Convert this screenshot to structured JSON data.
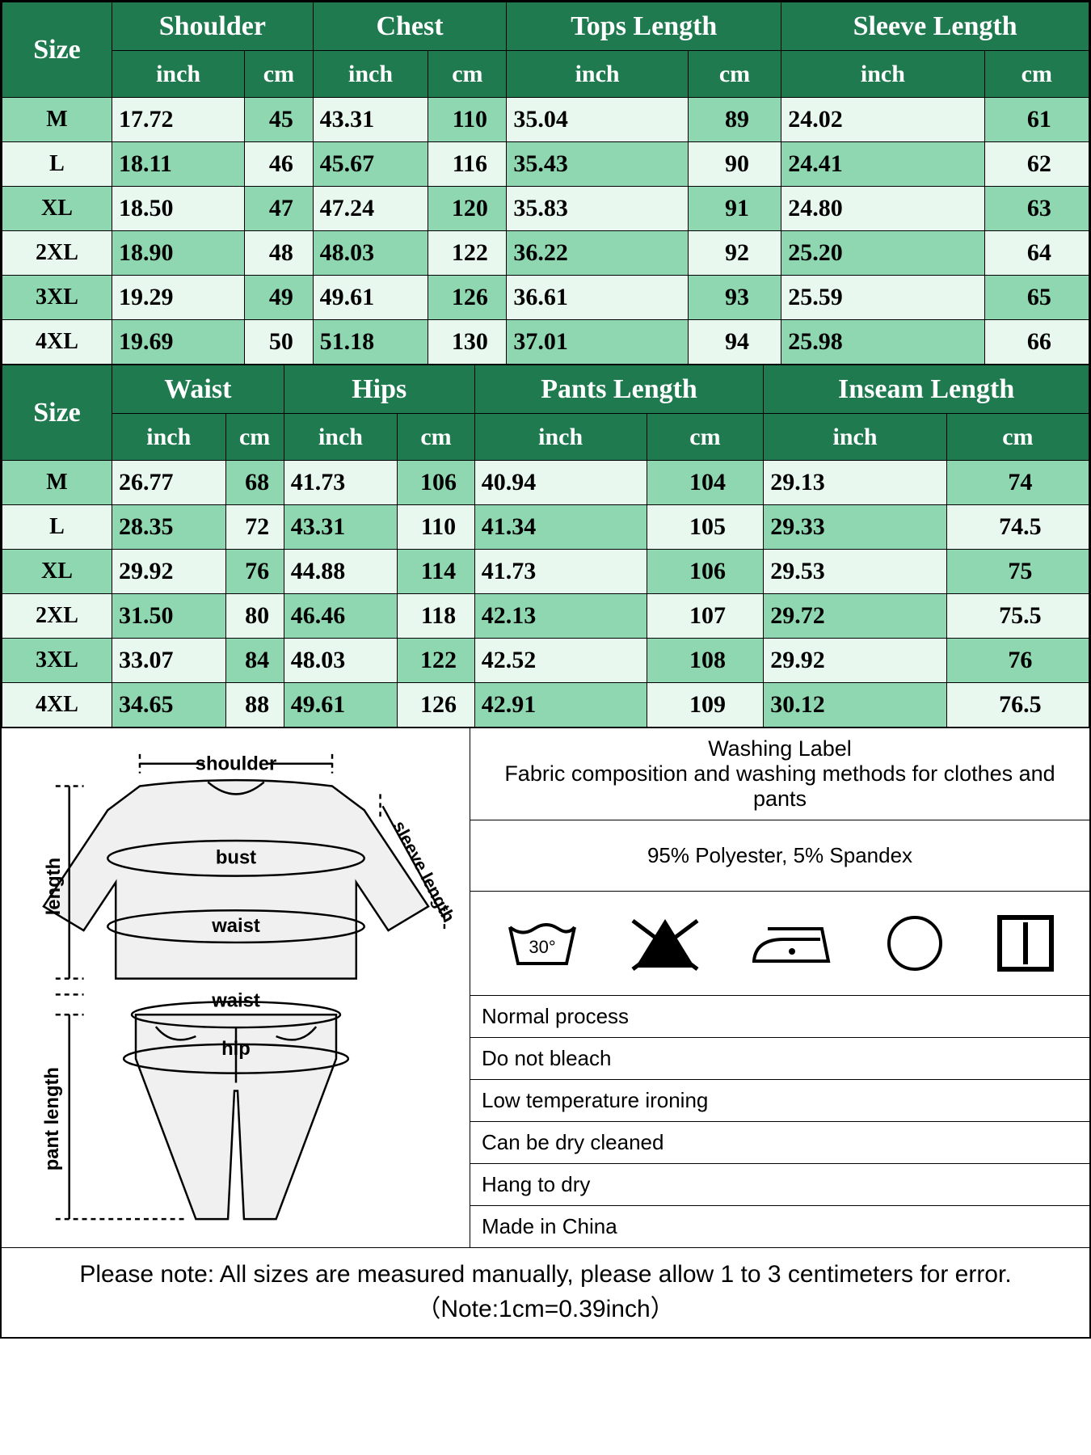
{
  "colors": {
    "header_bg": "#1f7a4f",
    "header_fg": "#ffffff",
    "row_light": "#e8f8ef",
    "row_med": "#8fd7b0",
    "border": "#000000"
  },
  "table1": {
    "size_label": "Size",
    "unit_inch": "inch",
    "unit_cm": "cm",
    "measurements": [
      "Shoulder",
      "Chest",
      "Tops Length",
      "Sleeve Length"
    ],
    "sizes": [
      "M",
      "L",
      "XL",
      "2XL",
      "3XL",
      "4XL"
    ],
    "rows": [
      {
        "shoulder": {
          "inch": "17.72",
          "cm": "45"
        },
        "chest": {
          "inch": "43.31",
          "cm": "110"
        },
        "tops": {
          "inch": "35.04",
          "cm": "89"
        },
        "sleeve": {
          "inch": "24.02",
          "cm": "61"
        }
      },
      {
        "shoulder": {
          "inch": "18.11",
          "cm": "46"
        },
        "chest": {
          "inch": "45.67",
          "cm": "116"
        },
        "tops": {
          "inch": "35.43",
          "cm": "90"
        },
        "sleeve": {
          "inch": "24.41",
          "cm": "62"
        }
      },
      {
        "shoulder": {
          "inch": "18.50",
          "cm": "47"
        },
        "chest": {
          "inch": "47.24",
          "cm": "120"
        },
        "tops": {
          "inch": "35.83",
          "cm": "91"
        },
        "sleeve": {
          "inch": "24.80",
          "cm": "63"
        }
      },
      {
        "shoulder": {
          "inch": "18.90",
          "cm": "48"
        },
        "chest": {
          "inch": "48.03",
          "cm": "122"
        },
        "tops": {
          "inch": "36.22",
          "cm": "92"
        },
        "sleeve": {
          "inch": "25.20",
          "cm": "64"
        }
      },
      {
        "shoulder": {
          "inch": "19.29",
          "cm": "49"
        },
        "chest": {
          "inch": "49.61",
          "cm": "126"
        },
        "tops": {
          "inch": "36.61",
          "cm": "93"
        },
        "sleeve": {
          "inch": "25.59",
          "cm": "65"
        }
      },
      {
        "shoulder": {
          "inch": "19.69",
          "cm": "50"
        },
        "chest": {
          "inch": "51.18",
          "cm": "130"
        },
        "tops": {
          "inch": "37.01",
          "cm": "94"
        },
        "sleeve": {
          "inch": "25.98",
          "cm": "66"
        }
      }
    ]
  },
  "table2": {
    "size_label": "Size",
    "unit_inch": "inch",
    "unit_cm": "cm",
    "measurements": [
      "Waist",
      "Hips",
      "Pants Length",
      "Inseam Length"
    ],
    "sizes": [
      "M",
      "L",
      "XL",
      "2XL",
      "3XL",
      "4XL"
    ],
    "rows": [
      {
        "waist": {
          "inch": "26.77",
          "cm": "68"
        },
        "hips": {
          "inch": "41.73",
          "cm": "106"
        },
        "pants": {
          "inch": "40.94",
          "cm": "104"
        },
        "inseam": {
          "inch": "29.13",
          "cm": "74"
        }
      },
      {
        "waist": {
          "inch": "28.35",
          "cm": "72"
        },
        "hips": {
          "inch": "43.31",
          "cm": "110"
        },
        "pants": {
          "inch": "41.34",
          "cm": "105"
        },
        "inseam": {
          "inch": "29.33",
          "cm": "74.5"
        }
      },
      {
        "waist": {
          "inch": "29.92",
          "cm": "76"
        },
        "hips": {
          "inch": "44.88",
          "cm": "114"
        },
        "pants": {
          "inch": "41.73",
          "cm": "106"
        },
        "inseam": {
          "inch": "29.53",
          "cm": "75"
        }
      },
      {
        "waist": {
          "inch": "31.50",
          "cm": "80"
        },
        "hips": {
          "inch": "46.46",
          "cm": "118"
        },
        "pants": {
          "inch": "42.13",
          "cm": "107"
        },
        "inseam": {
          "inch": "29.72",
          "cm": "75.5"
        }
      },
      {
        "waist": {
          "inch": "33.07",
          "cm": "84"
        },
        "hips": {
          "inch": "48.03",
          "cm": "122"
        },
        "pants": {
          "inch": "42.52",
          "cm": "108"
        },
        "inseam": {
          "inch": "29.92",
          "cm": "76"
        }
      },
      {
        "waist": {
          "inch": "34.65",
          "cm": "88"
        },
        "hips": {
          "inch": "49.61",
          "cm": "126"
        },
        "pants": {
          "inch": "42.91",
          "cm": "109"
        },
        "inseam": {
          "inch": "30.12",
          "cm": "76.5"
        }
      }
    ]
  },
  "diagram_labels": {
    "shoulder": "shoulder",
    "bust": "bust",
    "waist": "waist",
    "waist2": "waist",
    "hip": "hip",
    "length": "length",
    "sleeve_length": "sleeve length",
    "pant_length": "pant length"
  },
  "washing": {
    "title1": "Washing Label",
    "title2": "Fabric composition and washing methods for clothes and pants",
    "composition": "95% Polyester, 5% Spandex",
    "instructions": [
      "Normal process",
      "Do not bleach",
      "Low temperature ironing",
      "Can be dry cleaned",
      "Hang to dry",
      "Made in China"
    ],
    "wash_temp": "30°"
  },
  "note": "Please note: All sizes are measured manually, please allow 1 to 3 centimeters for error. （Note:1cm=0.39inch）"
}
